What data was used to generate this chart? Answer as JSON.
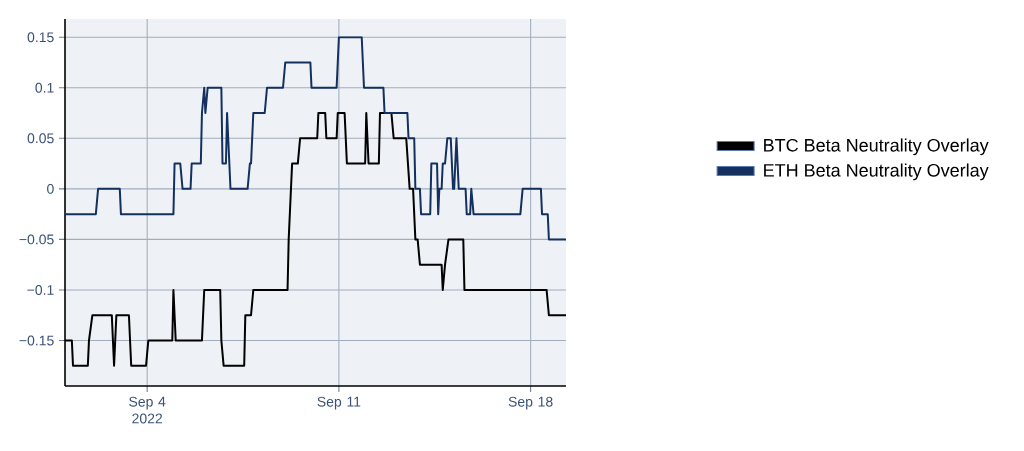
{
  "chart_data": {
    "type": "line",
    "xlim": [
      "2022-09-01T00:00",
      "2022-09-19T07:00"
    ],
    "ylim": [
      -0.195,
      0.168
    ],
    "xticks": [
      {
        "value": "2022-09-04",
        "label": "Sep 4 2022"
      },
      {
        "value": "2022-09-11",
        "label": "Sep 11"
      },
      {
        "value": "2022-09-18",
        "label": "Sep 18"
      }
    ],
    "yticks": [
      {
        "value": -0.15,
        "label": "−0.15"
      },
      {
        "value": -0.1,
        "label": "−0.1"
      },
      {
        "value": -0.05,
        "label": "−0.05"
      },
      0,
      0.05,
      0.1,
      0.15
    ],
    "grid": true,
    "legend": "right",
    "series": [
      {
        "name": "BTC Beta Neutrality Overlay",
        "color": "#000000",
        "x": [
          "2022-09-01T00:00",
          "2022-09-01T06:00",
          "2022-09-01T07:00",
          "2022-09-01T20:00",
          "2022-09-01T21:00",
          "2022-09-02T00:00",
          "2022-09-02T17:00",
          "2022-09-02T19:00",
          "2022-09-02T21:00",
          "2022-09-03T08:00",
          "2022-09-03T10:00",
          "2022-09-03T23:00",
          "2022-09-04T01:00",
          "2022-09-04T22:00",
          "2022-09-04T23:00",
          "2022-09-05T01:00",
          "2022-09-06T00:00",
          "2022-09-06T02:00",
          "2022-09-06T16:00",
          "2022-09-06T17:00",
          "2022-09-06T19:00",
          "2022-09-07T13:00",
          "2022-09-07T14:00",
          "2022-09-07T19:00",
          "2022-09-07T21:00",
          "2022-09-09T03:00",
          "2022-09-09T04:00",
          "2022-09-09T07:00",
          "2022-09-09T12:00",
          "2022-09-09T14:00",
          "2022-09-10T05:00",
          "2022-09-10T06:00",
          "2022-09-10T12:00",
          "2022-09-10T13:00",
          "2022-09-10T22:00",
          "2022-09-10T23:00",
          "2022-09-11T05:00",
          "2022-09-11T07:00",
          "2022-09-11T23:00",
          "2022-09-12T00:00",
          "2022-09-12T02:00",
          "2022-09-12T11:00",
          "2022-09-12T12:00",
          "2022-09-12T22:00",
          "2022-09-13T00:00",
          "2022-09-13T11:00",
          "2022-09-13T14:00",
          "2022-09-13T17:00",
          "2022-09-13T19:00",
          "2022-09-13T21:00",
          "2022-09-13T23:00",
          "2022-09-14T18:00",
          "2022-09-14T19:00",
          "2022-09-14T21:00",
          "2022-09-15T00:00",
          "2022-09-15T13:00",
          "2022-09-15T14:00",
          "2022-09-18T14:00",
          "2022-09-18T16:00",
          "2022-09-19T07:00"
        ],
        "values": [
          -0.15,
          -0.15,
          -0.175,
          -0.175,
          -0.15,
          -0.125,
          -0.125,
          -0.175,
          -0.125,
          -0.125,
          -0.175,
          -0.175,
          -0.15,
          -0.15,
          -0.1,
          -0.15,
          -0.15,
          -0.1,
          -0.1,
          -0.15,
          -0.175,
          -0.175,
          -0.125,
          -0.125,
          -0.1,
          -0.1,
          -0.05,
          0.025,
          0.025,
          0.05,
          0.05,
          0.075,
          0.075,
          0.05,
          0.05,
          0.075,
          0.075,
          0.025,
          0.025,
          0.075,
          0.025,
          0.025,
          0.075,
          0.075,
          0.05,
          0.05,
          0,
          0,
          -0.05,
          -0.05,
          -0.075,
          -0.075,
          -0.1,
          -0.075,
          -0.05,
          -0.05,
          -0.1,
          -0.1,
          -0.125,
          -0.125
        ]
      },
      {
        "name": "ETH Beta Neutrality Overlay",
        "color": "#14305e",
        "x": [
          "2022-09-01T00:00",
          "2022-09-02T03:00",
          "2022-09-02T05:00",
          "2022-09-03T00:00",
          "2022-09-03T01:00",
          "2022-09-04T23:00",
          "2022-09-05T00:00",
          "2022-09-05T05:00",
          "2022-09-05T07:00",
          "2022-09-05T14:00",
          "2022-09-05T15:00",
          "2022-09-05T23:00",
          "2022-09-06T00:00",
          "2022-09-06T02:00",
          "2022-09-06T03:00",
          "2022-09-06T05:00",
          "2022-09-06T17:00",
          "2022-09-06T18:00",
          "2022-09-06T21:00",
          "2022-09-06T22:00",
          "2022-09-07T00:00",
          "2022-09-07T01:00",
          "2022-09-07T16:00",
          "2022-09-07T18:00",
          "2022-09-07T19:00",
          "2022-09-07T21:00",
          "2022-09-08T07:00",
          "2022-09-08T09:00",
          "2022-09-08T23:00",
          "2022-09-09T01:00",
          "2022-09-09T23:00",
          "2022-09-10T00:00",
          "2022-09-10T22:00",
          "2022-09-11T00:00",
          "2022-09-11T20:00",
          "2022-09-11T22:00",
          "2022-09-12T15:00",
          "2022-09-12T16:00",
          "2022-09-13T12:00",
          "2022-09-13T13:00",
          "2022-09-13T18:00",
          "2022-09-13T19:00",
          "2022-09-13T23:00",
          "2022-09-14T00:00",
          "2022-09-14T08:00",
          "2022-09-14T09:00",
          "2022-09-14T14:00",
          "2022-09-14T15:00",
          "2022-09-14T16:00",
          "2022-09-14T18:00",
          "2022-09-14T19:00",
          "2022-09-14T21:00",
          "2022-09-14T23:00",
          "2022-09-15T02:00",
          "2022-09-15T04:00",
          "2022-09-15T05:00",
          "2022-09-15T07:00",
          "2022-09-15T09:00",
          "2022-09-15T15:00",
          "2022-09-15T16:00",
          "2022-09-15T19:00",
          "2022-09-15T20:00",
          "2022-09-15T22:00",
          "2022-09-17T15:00",
          "2022-09-17T17:00",
          "2022-09-18T09:00",
          "2022-09-18T10:00",
          "2022-09-18T15:00",
          "2022-09-18T16:00",
          "2022-09-19T07:00"
        ],
        "values": [
          -0.025,
          -0.025,
          0,
          0,
          -0.025,
          -0.025,
          0.025,
          0.025,
          0,
          0,
          0.025,
          0.025,
          0.075,
          0.1,
          0.075,
          0.1,
          0.1,
          0.025,
          0.025,
          0.075,
          0.025,
          0,
          0,
          0.025,
          0.025,
          0.075,
          0.075,
          0.1,
          0.1,
          0.125,
          0.125,
          0.1,
          0.1,
          0.15,
          0.15,
          0.1,
          0.1,
          0.075,
          0.075,
          0.05,
          0.05,
          0,
          0,
          -0.025,
          -0.025,
          0.025,
          0.025,
          -0.025,
          0,
          0,
          0.025,
          0.025,
          0.05,
          0.05,
          0,
          0,
          0.05,
          0,
          0,
          -0.025,
          -0.025,
          0,
          -0.025,
          -0.025,
          0,
          0,
          -0.025,
          -0.025,
          -0.05,
          -0.05
        ]
      }
    ]
  }
}
